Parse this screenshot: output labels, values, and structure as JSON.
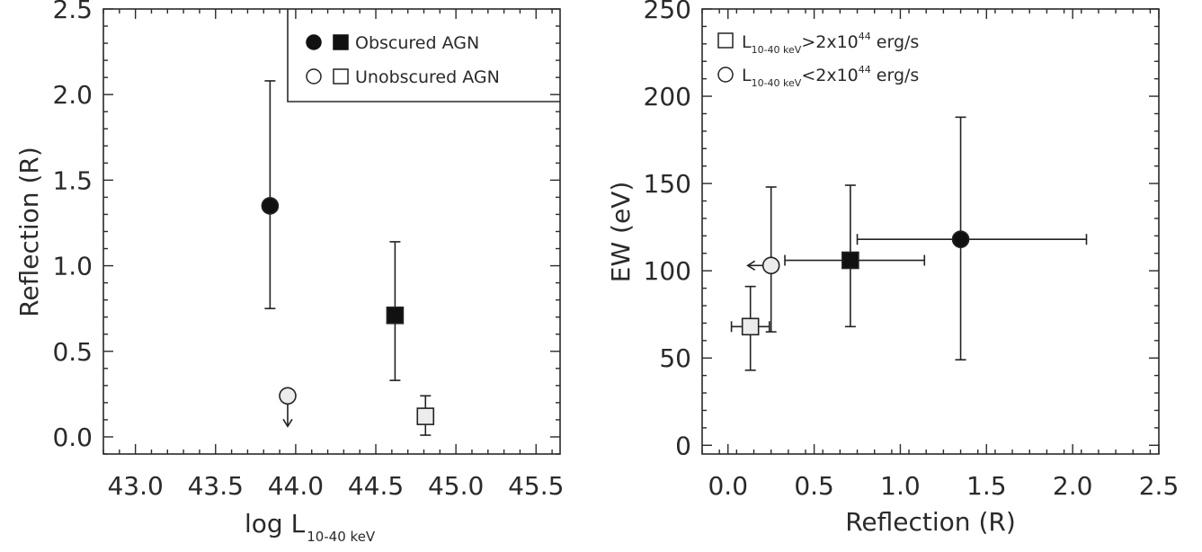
{
  "chart_data": [
    {
      "type": "scatter",
      "xlabel_main": "log L",
      "xlabel_sub": "10-40 keV",
      "ylabel": "Reflection (R)",
      "xlim": [
        42.8,
        45.65
      ],
      "ylim": [
        -0.1,
        2.5
      ],
      "xticks": [
        "43.0",
        "43.5",
        "44.0",
        "44.5",
        "45.0",
        "45.5"
      ],
      "yticks": [
        "0.0",
        "0.5",
        "1.0",
        "1.5",
        "2.0",
        "2.5"
      ],
      "legend": {
        "position": "top-right",
        "entries": [
          {
            "label": "Obscured AGN",
            "markers": [
              "filled-circle",
              "filled-square"
            ]
          },
          {
            "label": "Unobscured AGN",
            "markers": [
              "open-circle",
              "open-square"
            ]
          }
        ]
      },
      "points": [
        {
          "x": 43.84,
          "y": 1.35,
          "ylo": 0.75,
          "yhi": 2.08,
          "marker": "filled-circle",
          "upper_limit": false
        },
        {
          "x": 44.62,
          "y": 0.71,
          "ylo": 0.33,
          "yhi": 1.14,
          "marker": "filled-square",
          "upper_limit": false
        },
        {
          "x": 43.95,
          "y": 0.24,
          "ylo": null,
          "yhi": null,
          "marker": "open-circle",
          "upper_limit": true
        },
        {
          "x": 44.81,
          "y": 0.12,
          "ylo": 0.01,
          "yhi": 0.24,
          "marker": "open-square",
          "upper_limit": false
        }
      ]
    },
    {
      "type": "scatter",
      "xlabel": "Reflection (R)",
      "ylabel": "EW (eV)",
      "xlim": [
        -0.15,
        2.5
      ],
      "ylim": [
        -5,
        250
      ],
      "xticks": [
        "0.0",
        "0.5",
        "1.0",
        "1.5",
        "2.0",
        "2.5"
      ],
      "yticks": [
        "0",
        "50",
        "100",
        "150",
        "200",
        "250"
      ],
      "legend": {
        "position": "top-left",
        "entries": [
          {
            "marker": "open-square",
            "pre": "L",
            "sub": "10-40 keV",
            "op": ">2x10",
            "exp": "44",
            "post": " erg/s"
          },
          {
            "marker": "open-circle",
            "pre": "L",
            "sub": "10-40 keV",
            "op": "<2x10",
            "exp": "44",
            "post": " erg/s"
          }
        ]
      },
      "points": [
        {
          "x": 0.13,
          "y": 68,
          "xlo": 0.02,
          "xhi": 0.24,
          "ylo": 43,
          "yhi": 91,
          "marker": "open-square",
          "x_upper_limit": false
        },
        {
          "x": 0.25,
          "y": 103,
          "xlo": null,
          "xhi": null,
          "ylo": 65,
          "yhi": 148,
          "marker": "open-circle",
          "x_upper_limit": true
        },
        {
          "x": 0.71,
          "y": 106,
          "xlo": 0.33,
          "xhi": 1.14,
          "ylo": 68,
          "yhi": 149,
          "marker": "filled-square",
          "x_upper_limit": false
        },
        {
          "x": 1.35,
          "y": 118,
          "xlo": 0.75,
          "xhi": 2.08,
          "ylo": 49,
          "yhi": 188,
          "marker": "filled-circle",
          "x_upper_limit": false
        }
      ]
    }
  ]
}
